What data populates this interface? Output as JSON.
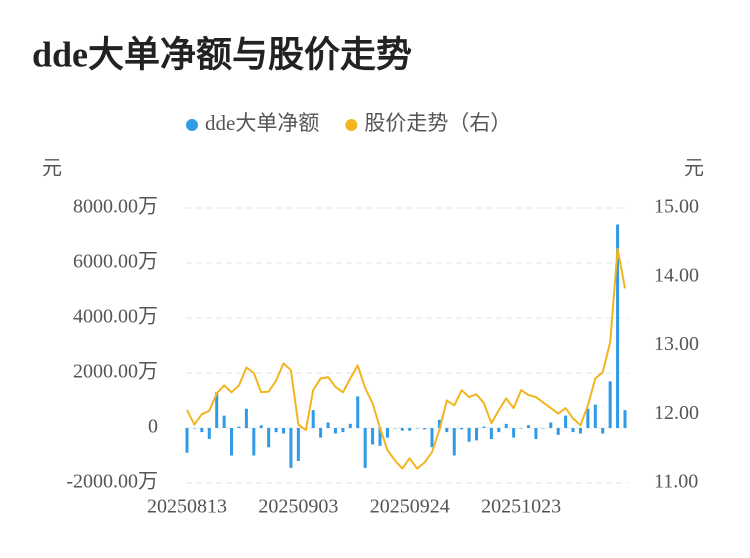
{
  "chart_data": {
    "type": "bar_line",
    "title": "dde大单净额与股价走势",
    "y_unit": "元",
    "y2_unit": "元",
    "categories": [
      "20250813",
      null,
      null,
      null,
      null,
      null,
      null,
      null,
      null,
      null,
      null,
      null,
      null,
      null,
      null,
      "20250903",
      null,
      null,
      null,
      null,
      null,
      null,
      null,
      null,
      null,
      null,
      null,
      null,
      null,
      null,
      "20250924",
      null,
      null,
      null,
      null,
      null,
      null,
      null,
      null,
      null,
      null,
      null,
      null,
      null,
      null,
      "20251023",
      null,
      null,
      null,
      null,
      null,
      null,
      null,
      null,
      null,
      null,
      null,
      null,
      null,
      null
    ],
    "series": [
      {
        "name": "dde大单净额",
        "color": "#2f9be6",
        "kind": "bar",
        "values": [
          -900,
          0,
          -150,
          -400,
          1300,
          450,
          -1000,
          50,
          700,
          -1000,
          100,
          -700,
          -150,
          -200,
          -1450,
          -1200,
          0,
          650,
          -350,
          200,
          -200,
          -150,
          150,
          1150,
          -1450,
          -600,
          -650,
          -350,
          0,
          -100,
          -100,
          0,
          -50,
          -700,
          300,
          -150,
          -1000,
          -50,
          -500,
          -450,
          50,
          -400,
          -150,
          150,
          -350,
          0,
          100,
          -400,
          0,
          200,
          -250,
          450,
          -150,
          -200,
          700,
          850,
          -200,
          1700,
          7400,
          650
        ]
      },
      {
        "name": "股价走势（右）",
        "color": "#f2b520",
        "kind": "line",
        "axis": "y2",
        "values": [
          12.06,
          11.85,
          12.0,
          12.05,
          12.3,
          12.42,
          12.32,
          12.42,
          12.68,
          12.6,
          12.32,
          12.33,
          12.49,
          12.74,
          12.64,
          11.85,
          11.77,
          12.35,
          12.52,
          12.54,
          12.4,
          12.32,
          12.52,
          12.71,
          12.38,
          12.16,
          11.8,
          11.48,
          11.33,
          11.21,
          11.36,
          11.21,
          11.3,
          11.45,
          11.77,
          12.2,
          12.13,
          12.35,
          12.25,
          12.29,
          12.16,
          11.87,
          12.06,
          12.23,
          12.09,
          12.35,
          12.28,
          12.25,
          12.17,
          12.09,
          12.01,
          12.09,
          11.94,
          11.84,
          12.13,
          12.52,
          12.61,
          13.05,
          14.41,
          13.83
        ]
      }
    ],
    "ylim": [
      -2000,
      8000
    ],
    "yticks": [
      {
        "value": -2000,
        "label": "-2000.00万"
      },
      0,
      {
        "value": 2000,
        "label": "2000.00万"
      },
      {
        "value": 4000,
        "label": "4000.00万"
      },
      {
        "value": 6000,
        "label": "6000.00万"
      },
      {
        "value": 8000,
        "label": "8000.00万"
      }
    ],
    "y2lim": [
      11,
      15
    ],
    "y2ticks": [
      {
        "value": 11,
        "label": "11.00"
      },
      {
        "value": 12,
        "label": "12.00"
      },
      {
        "value": 13,
        "label": "13.00"
      },
      {
        "value": 14,
        "label": "14.00"
      },
      {
        "value": 15,
        "label": "15.00"
      }
    ],
    "grid": true
  }
}
